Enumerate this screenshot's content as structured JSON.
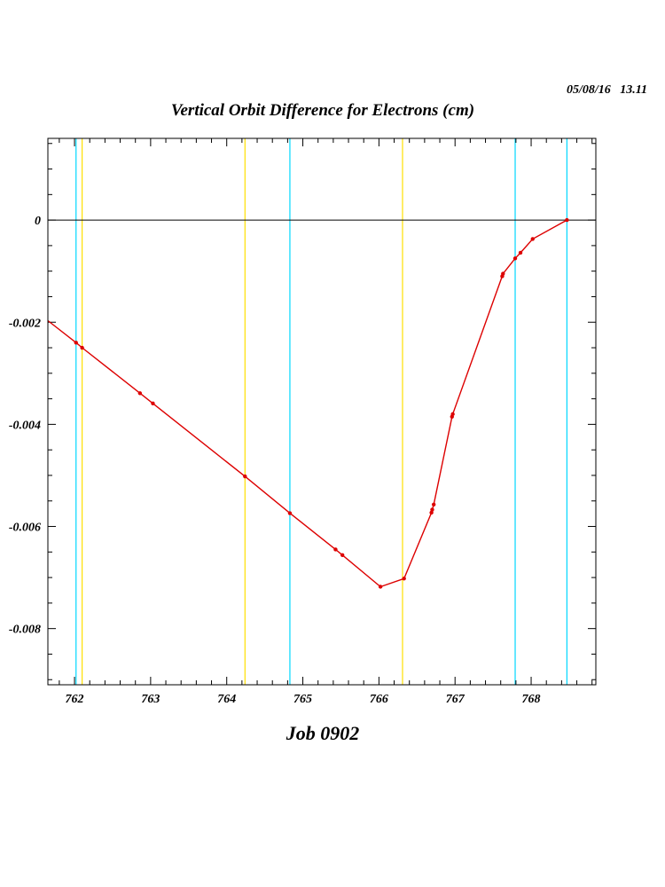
{
  "header": {
    "date": "05/08/16   13.11"
  },
  "footer": {
    "job": "Job 0902"
  },
  "chart_data": {
    "type": "line",
    "title": "Vertical Orbit Difference for Electrons (cm)",
    "xlabel": "",
    "ylabel": "",
    "xlim": [
      761.65,
      768.85
    ],
    "ylim": [
      -0.0091,
      0.0016
    ],
    "xticks": [
      762,
      763,
      764,
      765,
      766,
      767,
      768
    ],
    "xtick_labels": [
      "762",
      "763",
      "764",
      "765",
      "766",
      "767",
      "768"
    ],
    "yticks": [
      0,
      -0.002,
      -0.004,
      -0.006,
      -0.008
    ],
    "ytick_labels": [
      "0",
      "-0.002",
      "-0.004",
      "-0.006",
      "-0.008"
    ],
    "zero_line": true,
    "grid": false,
    "vertical_markers": [
      {
        "x": 762.02,
        "color": "#00d8ff"
      },
      {
        "x": 762.1,
        "color": "#ffe000"
      },
      {
        "x": 764.24,
        "color": "#ffe000"
      },
      {
        "x": 764.83,
        "color": "#00d8ff"
      },
      {
        "x": 766.31,
        "color": "#ffe000"
      },
      {
        "x": 767.79,
        "color": "#00d8ff"
      },
      {
        "x": 768.47,
        "color": "#00d8ff"
      }
    ],
    "series": [
      {
        "color": "#dd0000",
        "x": [
          761.65,
          762.02,
          762.1,
          762.86,
          763.03,
          764.24,
          764.83,
          765.43,
          765.52,
          766.02,
          766.33,
          766.69,
          766.7,
          766.72,
          766.96,
          766.97,
          767.62,
          767.63,
          767.79,
          767.86,
          768.02,
          768.47
        ],
        "y": [
          -0.00197,
          -0.0024,
          -0.0025,
          -0.00339,
          -0.00359,
          -0.00502,
          -0.00574,
          -0.00645,
          -0.00656,
          -0.00718,
          -0.00702,
          -0.00573,
          -0.00567,
          -0.00557,
          -0.00385,
          -0.0038,
          -0.0011,
          -0.00105,
          -0.00075,
          -0.00064,
          -0.00037,
          0.0
        ]
      }
    ]
  }
}
